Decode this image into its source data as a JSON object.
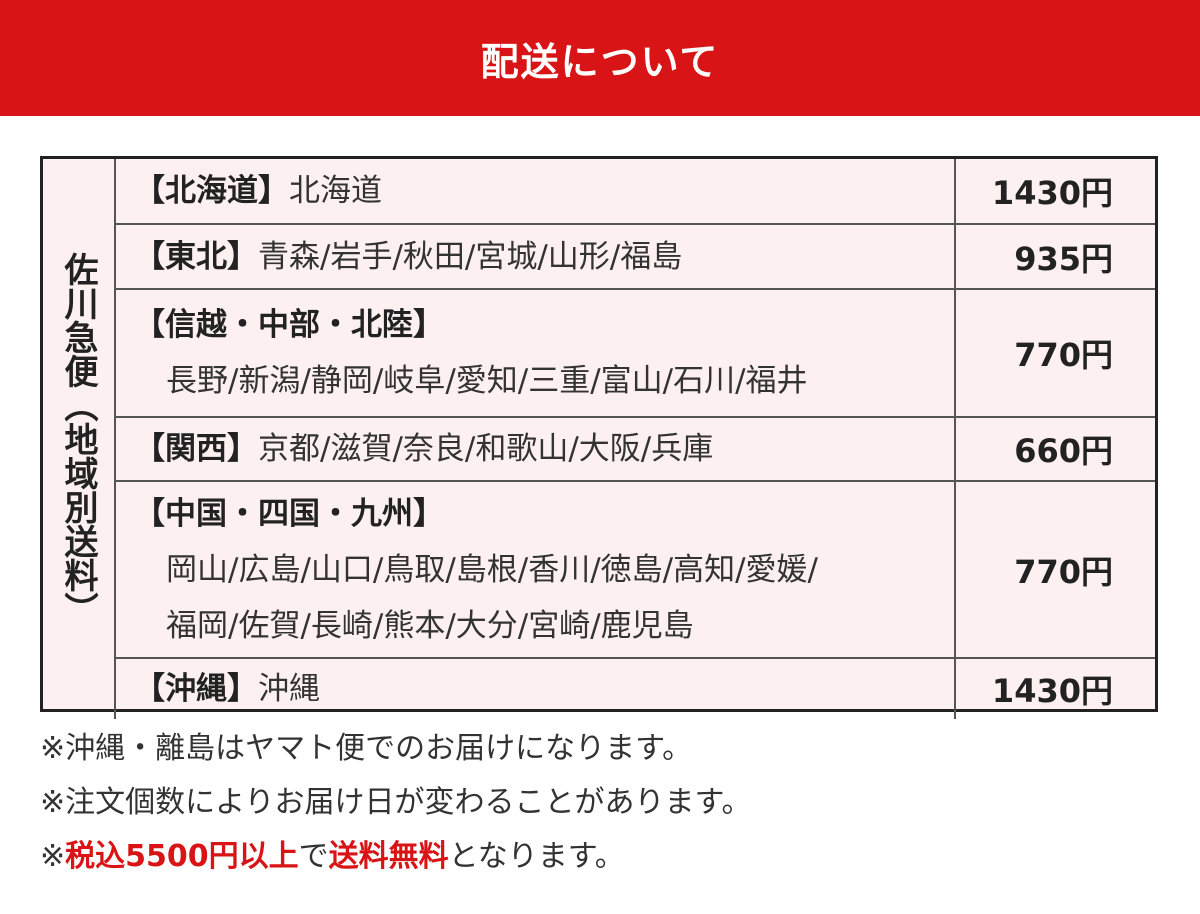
{
  "header": {
    "title": "配送について"
  },
  "table": {
    "side_label": "佐川急便（地域別送料）",
    "rows": [
      {
        "region": "【北海道】",
        "prefectures": "北海道",
        "price": "1430円"
      },
      {
        "region": "【東北】",
        "prefectures": "青森/岩手/秋田/宮城/山形/福島",
        "price": "935円"
      },
      {
        "region": "【信越・中部・北陸】",
        "prefectures": "長野/新潟/静岡/岐阜/愛知/三重/富山/石川/福井",
        "price": "770円"
      },
      {
        "region": "【関西】",
        "prefectures": "京都/滋賀/奈良/和歌山/大阪/兵庫",
        "price": "660円"
      },
      {
        "region": "【中国・四国・九州】",
        "prefectures_line1": "岡山/広島/山口/鳥取/島根/香川/徳島/高知/愛媛/",
        "prefectures_line2": "福岡/佐賀/長崎/熊本/大分/宮崎/鹿児島",
        "price": "770円"
      },
      {
        "region": "【沖縄】",
        "prefectures": "沖縄",
        "price": "1430円"
      }
    ]
  },
  "notes": {
    "note1": "※沖縄・離島はヤマト便でのお届けになります。",
    "note2": "※注文個数によりお届け日が変わることがあります。",
    "note3": {
      "prefix": "※",
      "highlight1": "税込5500円以上",
      "middle": "で",
      "highlight2": "送料無料",
      "suffix": "となります。"
    }
  },
  "colors": {
    "accent": "#d81416",
    "table_bg": "#fcf1f0",
    "border": "#222222"
  }
}
